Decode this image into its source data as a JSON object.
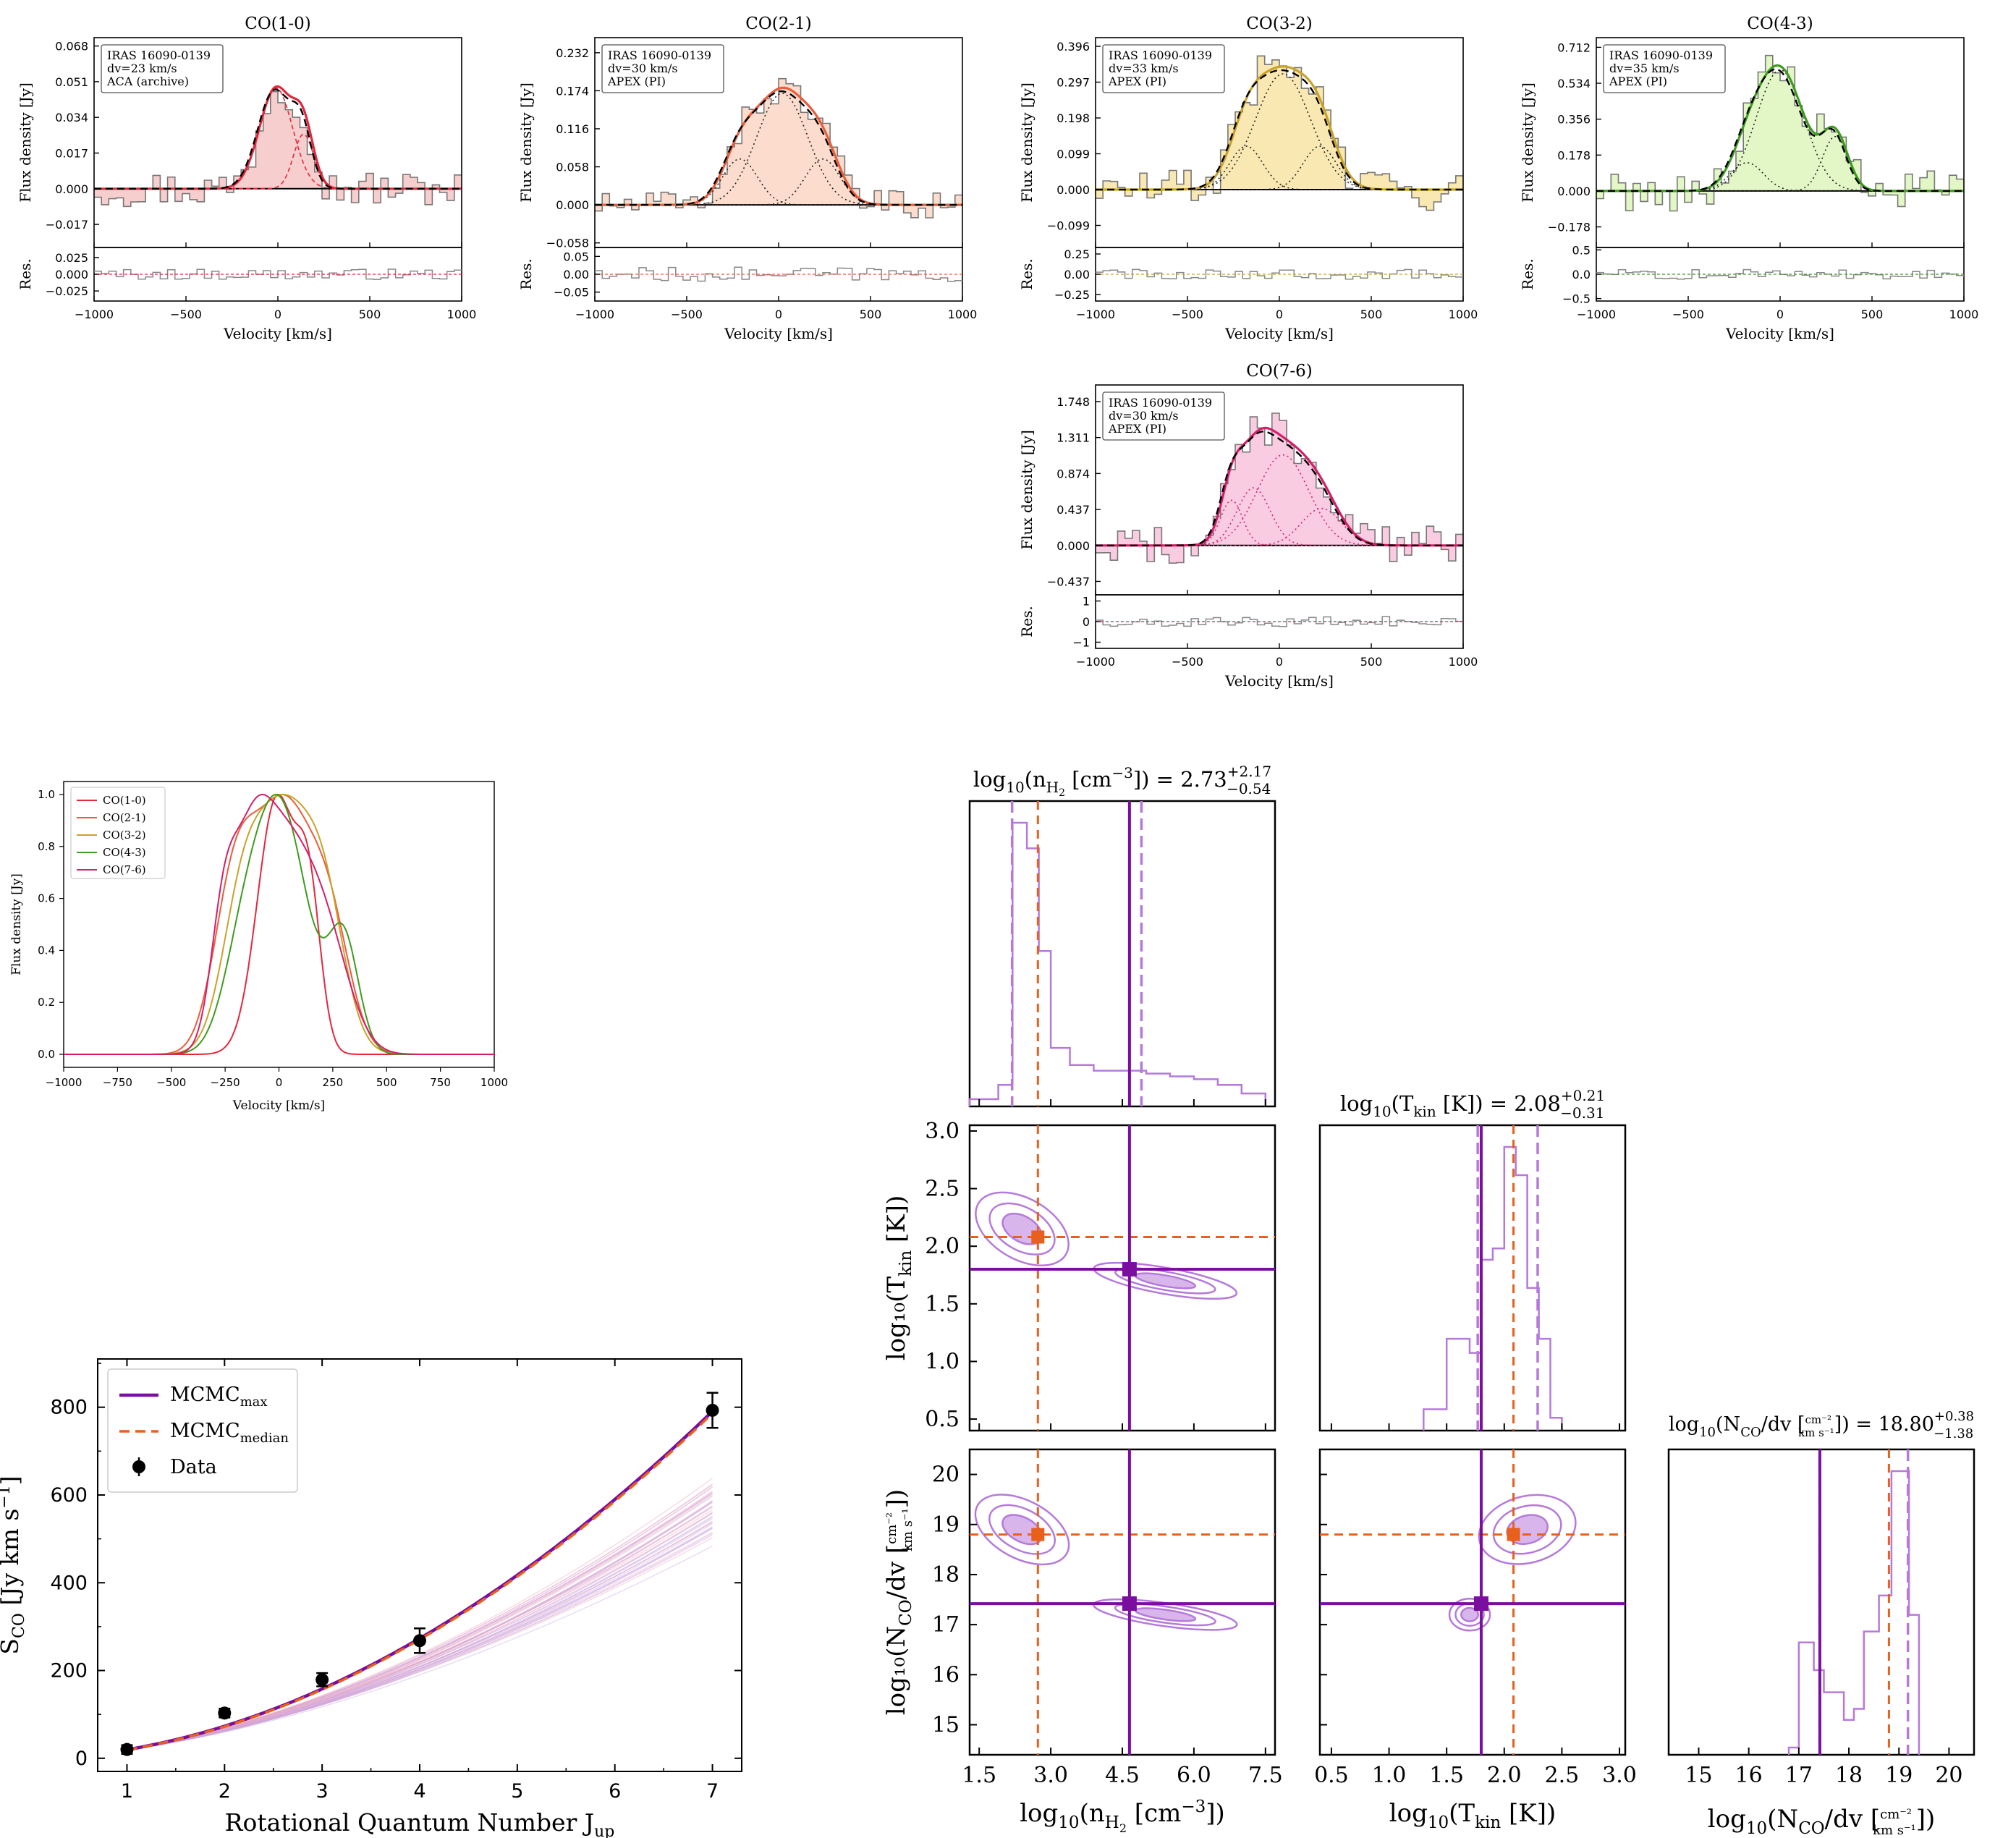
{
  "colors": {
    "co10": "#e3273c",
    "co21": "#e85d3c",
    "co32": "#c9a22a",
    "co43": "#3f9a20",
    "co76": "#d31f68",
    "fill10": "#f6c9c9",
    "fill21": "#fbd8c8",
    "fill32": "#f8e6a9",
    "fill43": "#dff5c0",
    "fill76": "#f9c7df",
    "purple": "#7a0e9e",
    "light_purple": "#b57ad9",
    "orange": "#e8601c"
  },
  "chart_data": [
    {
      "type": "line",
      "title": "CO(1-0)",
      "legend_lines": [
        "IRAS 16090-0139",
        "dv=23 km/s",
        "ACA (archive)"
      ],
      "ylabel": "Flux density [Jy]",
      "res_label": "Res.",
      "xlabel": "Velocity [km/s]",
      "xlim": [
        -1000,
        1000
      ],
      "ylim": [
        -0.028,
        0.072
      ],
      "yticks": [
        -0.017,
        0.0,
        0.017,
        0.034,
        0.051,
        0.068
      ],
      "ytick_labels": [
        "−0.017",
        "0.000",
        "0.017",
        "0.034",
        "0.051",
        "0.068"
      ],
      "res_ylim": [
        -0.04,
        0.04
      ],
      "res_yticks": [
        -0.025,
        0.0,
        0.025
      ],
      "res_ytick_labels": [
        "−0.025",
        "0.000",
        "0.025"
      ],
      "xticks": [
        -1000,
        -500,
        0,
        500,
        1000
      ],
      "xtick_labels": [
        "−1000",
        "−500",
        "0",
        "500",
        "1000"
      ],
      "components": [
        {
          "amp": 0.048,
          "mu": -10,
          "sigma": 90
        },
        {
          "amp": 0.026,
          "mu": 140,
          "sigma": 55
        }
      ],
      "noise": 0.009,
      "res_noise": 0.008,
      "color_key": "co10",
      "fill_key": "fill10"
    },
    {
      "type": "line",
      "title": "CO(2-1)",
      "legend_lines": [
        "IRAS 16090-0139",
        "dv=30 km/s",
        "APEX (PI)"
      ],
      "ylabel": "Flux density [Jy]",
      "res_label": "Res.",
      "xlabel": "Velocity [km/s]",
      "xlim": [
        -1000,
        1000
      ],
      "ylim": [
        -0.065,
        0.255
      ],
      "yticks": [
        -0.058,
        0.0,
        0.058,
        0.116,
        0.174,
        0.232
      ],
      "ytick_labels": [
        "−0.058",
        "0.000",
        "0.058",
        "0.116",
        "0.174",
        "0.232"
      ],
      "res_ylim": [
        -0.075,
        0.075
      ],
      "res_yticks": [
        -0.05,
        0.0,
        0.05
      ],
      "res_ytick_labels": [
        "−0.05",
        "0.00",
        "0.05"
      ],
      "xticks": [
        -1000,
        -500,
        0,
        500,
        1000
      ],
      "xtick_labels": [
        "−1000",
        "−500",
        "0",
        "500",
        "1000"
      ],
      "components": [
        {
          "amp": 0.07,
          "mu": -210,
          "sigma": 95
        },
        {
          "amp": 0.17,
          "mu": 20,
          "sigma": 140
        },
        {
          "amp": 0.07,
          "mu": 240,
          "sigma": 95
        }
      ],
      "noise": 0.022,
      "res_noise": 0.02,
      "color_key": "co21",
      "fill_key": "fill21"
    },
    {
      "type": "line",
      "title": "CO(3-2)",
      "legend_lines": [
        "IRAS 16090-0139",
        "dv=33 km/s",
        "APEX (PI)"
      ],
      "ylabel": "Flux density [Jy]",
      "res_label": "Res.",
      "xlabel": "Velocity [km/s]",
      "xlim": [
        -1000,
        1000
      ],
      "ylim": [
        -0.16,
        0.42
      ],
      "yticks": [
        -0.099,
        0.0,
        0.099,
        0.198,
        0.297,
        0.396
      ],
      "ytick_labels": [
        "−0.099",
        "0.000",
        "0.099",
        "0.198",
        "0.297",
        "0.396"
      ],
      "res_ylim": [
        -0.33,
        0.33
      ],
      "res_yticks": [
        -0.25,
        0.0,
        0.25
      ],
      "res_ytick_labels": [
        "−0.25",
        "0.00",
        "0.25"
      ],
      "xticks": [
        -1000,
        -500,
        0,
        500,
        1000
      ],
      "xtick_labels": [
        "−1000",
        "−500",
        "0",
        "500",
        "1000"
      ],
      "components": [
        {
          "amp": 0.12,
          "mu": -180,
          "sigma": 90
        },
        {
          "amp": 0.32,
          "mu": 20,
          "sigma": 150
        },
        {
          "amp": 0.12,
          "mu": 220,
          "sigma": 90
        }
      ],
      "noise": 0.06,
      "res_noise": 0.06,
      "color_key": "co32",
      "fill_key": "fill32"
    },
    {
      "type": "line",
      "title": "CO(4-3)",
      "legend_lines": [
        "IRAS 16090-0139",
        "dv=35 km/s",
        "APEX (PI)"
      ],
      "ylabel": "Flux density [Jy]",
      "res_label": "Res.",
      "xlabel": "Velocity [km/s]",
      "xlim": [
        -1000,
        1000
      ],
      "ylim": [
        -0.28,
        0.76
      ],
      "yticks": [
        -0.178,
        0.0,
        0.178,
        0.356,
        0.534,
        0.712
      ],
      "ytick_labels": [
        "−0.178",
        "0.000",
        "0.178",
        "0.356",
        "0.534",
        "0.712"
      ],
      "res_ylim": [
        -0.55,
        0.55
      ],
      "res_yticks": [
        -0.5,
        0.0,
        0.5
      ],
      "res_ytick_labels": [
        "−0.5",
        "0.0",
        "0.5"
      ],
      "xticks": [
        -1000,
        -500,
        0,
        500,
        1000
      ],
      "xtick_labels": [
        "−1000",
        "−500",
        "0",
        "500",
        "1000"
      ],
      "components": [
        {
          "amp": 0.14,
          "mu": -180,
          "sigma": 90
        },
        {
          "amp": 0.6,
          "mu": 0,
          "sigma": 130
        },
        {
          "amp": 0.27,
          "mu": 300,
          "sigma": 70
        }
      ],
      "noise": 0.1,
      "res_noise": 0.1,
      "color_key": "co43",
      "fill_key": "fill43"
    },
    {
      "type": "line",
      "title": "CO(7-6)",
      "legend_lines": [
        "IRAS 16090-0139",
        "dv=30 km/s",
        "APEX (PI)"
      ],
      "ylabel": "Flux density [Jy]",
      "res_label": "Res.",
      "xlabel": "Velocity [km/s]",
      "xlim": [
        -1000,
        1000
      ],
      "ylim": [
        -0.6,
        1.95
      ],
      "yticks": [
        -0.437,
        0.0,
        0.437,
        0.874,
        1.311,
        1.748
      ],
      "ytick_labels": [
        "−0.437",
        "0.000",
        "0.437",
        "0.874",
        "1.311",
        "1.748"
      ],
      "res_ylim": [
        -1.3,
        1.3
      ],
      "res_yticks": [
        -1,
        0,
        1
      ],
      "res_ytick_labels": [
        "−1",
        "0",
        "1"
      ],
      "xticks": [
        -1000,
        -500,
        0,
        500,
        1000
      ],
      "xtick_labels": [
        "−1000",
        "−500",
        "0",
        "500",
        "1000"
      ],
      "components": [
        {
          "amp": 0.55,
          "mu": -260,
          "sigma": 60
        },
        {
          "amp": 0.7,
          "mu": -140,
          "sigma": 90
        },
        {
          "amp": 1.1,
          "mu": 20,
          "sigma": 140
        },
        {
          "amp": 0.45,
          "mu": 230,
          "sigma": 110
        }
      ],
      "noise": 0.25,
      "res_noise": 0.25,
      "color_key": "co76",
      "fill_key": "fill76"
    },
    {
      "type": "line",
      "title": "",
      "ylabel": "Flux density [Jy]",
      "xlabel": "Velocity [km/s]",
      "xlim": [
        -1000,
        1000
      ],
      "ylim": [
        -0.05,
        1.05
      ],
      "yticks": [
        0.0,
        0.2,
        0.4,
        0.6,
        0.8,
        1.0
      ],
      "ytick_labels": [
        "0.0",
        "0.2",
        "0.4",
        "0.6",
        "0.8",
        "1.0"
      ],
      "xticks": [
        -1000,
        -750,
        -500,
        -250,
        0,
        250,
        500,
        750,
        1000
      ],
      "xtick_labels": [
        "−1000",
        "−750",
        "−500",
        "−250",
        "0",
        "250",
        "500",
        "750",
        "1000"
      ],
      "legend_placement": "top-left",
      "series": [
        {
          "name": "CO(1-0)",
          "color_key": "co10",
          "components": [
            {
              "amp": 0.82,
              "mu": -10,
              "sigma": 90
            },
            {
              "amp": 0.44,
              "mu": 140,
              "sigma": 55
            }
          ]
        },
        {
          "name": "CO(2-1)",
          "color_key": "co21",
          "components": [
            {
              "amp": 0.55,
              "mu": -210,
              "sigma": 95
            },
            {
              "amp": 0.93,
              "mu": 20,
              "sigma": 140
            },
            {
              "amp": 0.38,
              "mu": 240,
              "sigma": 95
            }
          ]
        },
        {
          "name": "CO(3-2)",
          "color_key": "co32",
          "components": [
            {
              "amp": 0.36,
              "mu": -180,
              "sigma": 90
            },
            {
              "amp": 0.96,
              "mu": 20,
              "sigma": 150
            },
            {
              "amp": 0.36,
              "mu": 220,
              "sigma": 90
            }
          ]
        },
        {
          "name": "CO(4-3)",
          "color_key": "co43",
          "components": [
            {
              "amp": 0.22,
              "mu": -180,
              "sigma": 90
            },
            {
              "amp": 0.97,
              "mu": 0,
              "sigma": 130
            },
            {
              "amp": 0.43,
              "mu": 300,
              "sigma": 70
            }
          ]
        },
        {
          "name": "CO(7-6)",
          "color_key": "co76",
          "components": [
            {
              "amp": 0.5,
              "mu": -260,
              "sigma": 60
            },
            {
              "amp": 0.62,
              "mu": -140,
              "sigma": 90
            },
            {
              "amp": 0.98,
              "mu": 20,
              "sigma": 140
            },
            {
              "amp": 0.4,
              "mu": 230,
              "sigma": 110
            }
          ]
        }
      ]
    },
    {
      "type": "scatter",
      "title": "",
      "xlabel": "Rotational Quantum Number J",
      "xlabel_sub": "up",
      "ylabel": "S",
      "ylabel_sub": "CO",
      "ylabel_rest": " [Jy km s",
      "ylabel_sup": "−1",
      "ylabel_end": "]",
      "xlim": [
        0.7,
        7.3
      ],
      "ylim": [
        -30,
        910
      ],
      "xticks": [
        1,
        2,
        3,
        4,
        5,
        6,
        7
      ],
      "yticks": [
        0,
        200,
        400,
        600,
        800
      ],
      "legend": {
        "max_label": "MCMC",
        "max_sub": "max",
        "median_label": "MCMC",
        "median_sub": "median",
        "data_label": "Data",
        "placement": "top-left"
      },
      "data_points": [
        {
          "j": 1,
          "s": 20,
          "err": 10
        },
        {
          "j": 2,
          "s": 103,
          "err": 10
        },
        {
          "j": 3,
          "s": 179,
          "err": 15
        },
        {
          "j": 4,
          "s": 268,
          "err": 28
        },
        {
          "j": 7,
          "s": 793,
          "err": 40
        }
      ],
      "mcmc_max_curve": {
        "a": 17,
        "b": 0.9,
        "c": 0.07
      },
      "n_samples": 40
    },
    {
      "type": "corner",
      "titles": {
        "nh2": "log",
        "nh2_sub10": "10",
        "nh2_body": "(n",
        "nh2_subH2": "H",
        "nh2_subH2b": "2",
        "nh2_rest": " [cm",
        "nh2_sup": "−3",
        "nh2_value": "]) = 2.73",
        "nh2_up": "+2.17",
        "nh2_down": "−0.54",
        "tkin": "log",
        "tkin_sub10": "10",
        "tkin_body": "(T",
        "tkin_sub": "kin",
        "tkin_value": " [K]) = 2.08",
        "tkin_up": "+0.21",
        "tkin_down": "−0.31",
        "nco": "log",
        "nco_sub10": "10",
        "nco_body": "(N",
        "nco_sub": "CO",
        "nco_mid": "/dv [",
        "nco_frac_top": "cm⁻²",
        "nco_frac_bot": "km s⁻¹",
        "nco_value": "]) = 18.80",
        "nco_up": "+0.38",
        "nco_down": "−1.38"
      },
      "axis_labels": {
        "x_nh2": "log",
        "x_nh2_sub": "10",
        "x_nh2_rest": "(n",
        "x_nh2_H": "H",
        "x_nh2_2": "2",
        "x_nh2_end": " [cm",
        "x_nh2_sup": "−3",
        "x_nh2_close": "])",
        "x_tkin": "log",
        "x_tkin_sub": "10",
        "x_tkin_rest": "(T",
        "x_tkin_kin": "kin",
        "x_tkin_end": " [K])",
        "x_nco": "log",
        "x_nco_sub": "10",
        "x_nco_rest": "(N",
        "x_nco_CO": "CO",
        "x_nco_mid": "/dv [",
        "x_nco_top": "cm⁻²",
        "x_nco_bot": "km s⁻¹",
        "x_nco_close": "])",
        "y_tkin": "log₁₀(T",
        "y_tkin_kin": "kin",
        "y_tkin_end": " [K])",
        "y_nco": "log₁₀(N",
        "y_nco_CO": "CO",
        "y_nco_mid": "/dv [",
        "y_nco_top": "cm⁻²",
        "y_nco_bot": "km s⁻¹",
        "y_nco_close": "])"
      },
      "ranges": {
        "nh2": [
          1.3,
          7.7
        ],
        "tkin": [
          0.4,
          3.05
        ],
        "nco": [
          14.4,
          20.5
        ]
      },
      "ticks": {
        "nh2": [
          1.5,
          3.0,
          4.5,
          6.0,
          7.5
        ],
        "nh2_labels": [
          "1.5",
          "3.0",
          "4.5",
          "6.0",
          "7.5"
        ],
        "tkin": [
          0.5,
          1.0,
          1.5,
          2.0,
          2.5,
          3.0
        ],
        "tkin_labels": [
          "0.5",
          "1.0",
          "1.5",
          "2.0",
          "2.5",
          "3.0"
        ],
        "nco": [
          15,
          16,
          17,
          18,
          19,
          20
        ],
        "nco_labels": [
          "15",
          "16",
          "17",
          "18",
          "19",
          "20"
        ]
      },
      "max_values": {
        "nh2": 4.65,
        "tkin": 1.8,
        "nco": 17.42
      },
      "median_values": {
        "nh2": 2.73,
        "tkin": 2.08,
        "nco": 18.8
      },
      "quantiles": {
        "nh2": [
          2.19,
          4.9
        ],
        "tkin": [
          1.77,
          2.29
        ],
        "nco": [
          17.42,
          19.18
        ]
      },
      "hist_nh2": {
        "edges": [
          1.3,
          1.9,
          2.2,
          2.5,
          2.75,
          3.0,
          3.4,
          3.9,
          4.5,
          5.0,
          5.5,
          6.0,
          6.5,
          7.0,
          7.5
        ],
        "counts": [
          0,
          5,
          97,
          88,
          52,
          18,
          12,
          10,
          10,
          9,
          8,
          7,
          5,
          2
        ]
      },
      "hist_tkin": {
        "edges": [
          1.3,
          1.5,
          1.7,
          1.8,
          1.9,
          2.0,
          2.1,
          2.2,
          2.3,
          2.4,
          2.5
        ],
        "counts": [
          5,
          30,
          25,
          58,
          62,
          98,
          88,
          48,
          30,
          2
        ]
      },
      "hist_nco": {
        "edges": [
          16.8,
          17.0,
          17.3,
          17.5,
          17.9,
          18.1,
          18.3,
          18.6,
          18.85,
          19.2,
          19.4
        ],
        "counts": [
          0,
          38,
          28,
          20,
          10,
          14,
          42,
          55,
          100,
          48
        ]
      }
    }
  ]
}
